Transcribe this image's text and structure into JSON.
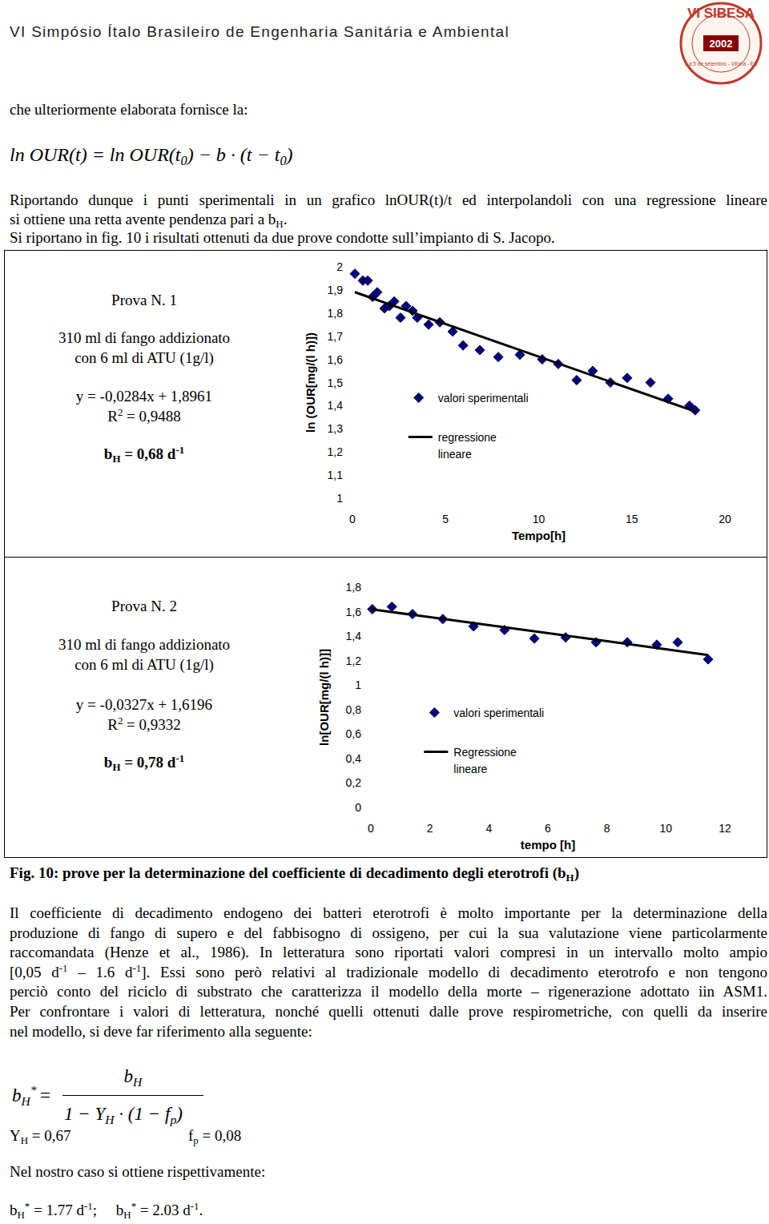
{
  "header": {
    "title": "VI Simpósio Ítalo Brasileiro de Engenharia Sanitária e Ambiental",
    "logo": {
      "name": "VI SIBESA",
      "year": "2002",
      "subtitle": "1 a 5 de setembro - Vitória - ES"
    }
  },
  "intro": [
    "che ulteriormente elaborata fornisce la:"
  ],
  "equation": [
    "ln OUR(t) = ln OUR(t",
    {
      "t": "0",
      "s": "sub"
    },
    ") − b · (t − t",
    {
      "t": "0",
      "s": "sub"
    },
    ")"
  ],
  "paragraphs_top": [
    [
      [
        "Riportando dunque i punti sperimentali in un grafico lnOUR(t)/t ed interpolandoli con una regressione lineare"
      ],
      [
        "si ottiene una retta avente pendenza pari a b",
        {
          "t": "H",
          "s": "sub"
        },
        "."
      ]
    ],
    [
      [
        "Si riportano in fig. 10 i risultati ottenuti da due prove condotte sull’impianto di S. Jacopo."
      ]
    ]
  ],
  "chart_data": [
    {
      "type": "scatter",
      "title": "Prova N. 1",
      "annotations": [
        [
          "310 ml di fango addizionato"
        ],
        [
          "con 6 ml di ATU (1g/l)"
        ],
        [
          "y = -0,0284x + 1,8961"
        ],
        [
          "R",
          {
            "t": "2",
            "s": "sup"
          },
          " = 0,9488"
        ],
        [
          "b",
          {
            "t": "H",
            "s": "sub"
          },
          " = 0,68 d",
          {
            "t": "-1",
            "s": "sup"
          }
        ]
      ],
      "x_label": "Tempo[h]",
      "y_label": "ln (OUR[mg/(l h)])",
      "xlim": [
        0,
        20
      ],
      "xticks": [
        0,
        5,
        10,
        15,
        20
      ],
      "ylim": [
        1,
        2
      ],
      "yticks": [
        1,
        {
          "value": 1.1,
          "label": "1,1"
        },
        {
          "value": 1.2,
          "label": "1,2"
        },
        {
          "value": 1.3,
          "label": "1,3"
        },
        {
          "value": 1.4,
          "label": "1,4"
        },
        {
          "value": 1.5,
          "label": "1,5"
        },
        {
          "value": 1.6,
          "label": "1,6"
        },
        {
          "value": 1.7,
          "label": "1,7"
        },
        {
          "value": 1.8,
          "label": "1,8"
        },
        {
          "value": 1.9,
          "label": "1,9"
        },
        2
      ],
      "grid": false,
      "legend": "center",
      "series": [
        {
          "name": "valori sperimentali",
          "type": "scatter",
          "marker": "diamond",
          "color": "#000080",
          "x": [
            0.13,
            0.56,
            0.82,
            1.08,
            1.33,
            1.72,
            1.98,
            2.24,
            2.58,
            2.88,
            3.23,
            3.48,
            4.09,
            4.69,
            5.38,
            5.94,
            6.84,
            7.83,
            8.99,
            10.19,
            11.05,
            12.04,
            12.9,
            13.85,
            14.75,
            16.0,
            16.95,
            18.1,
            18.4
          ],
          "values": [
            1.97,
            1.94,
            1.94,
            1.87,
            1.89,
            1.82,
            1.83,
            1.85,
            1.78,
            1.83,
            1.81,
            1.78,
            1.75,
            1.76,
            1.72,
            1.66,
            1.64,
            1.61,
            1.62,
            1.6,
            1.58,
            1.51,
            1.55,
            1.5,
            1.52,
            1.5,
            1.43,
            1.4,
            1.38
          ]
        },
        {
          "name": "regressione lineare",
          "type": "line",
          "line_style": "solid",
          "color": "#000000",
          "x": [
            0.13,
            18.4
          ],
          "values": [
            1.89,
            1.375
          ]
        }
      ]
    },
    {
      "type": "scatter",
      "title": "Prova N. 2",
      "annotations": [
        [
          "310 ml di fango addizionato"
        ],
        [
          "con 6 ml di ATU (1g/l)"
        ],
        [
          "y = -0,0327x + 1,6196"
        ],
        [
          "R",
          {
            "t": "2",
            "s": "sup"
          },
          " = 0,9332"
        ],
        [
          "b",
          {
            "t": "H",
            "s": "sub"
          },
          " = 0,78 d",
          {
            "t": "-1",
            "s": "sup"
          }
        ]
      ],
      "x_label": "tempo [h]",
      "y_label": "ln[OUR[mg/(l h)]]",
      "xlim": [
        0,
        12
      ],
      "xticks": [
        0,
        2,
        4,
        6,
        8,
        10,
        12
      ],
      "ylim": [
        0,
        1.8
      ],
      "yticks": [
        0,
        {
          "value": 0.2,
          "label": "0,2"
        },
        {
          "value": 0.4,
          "label": "0,4"
        },
        {
          "value": 0.6,
          "label": "0,6"
        },
        {
          "value": 0.8,
          "label": "0,8"
        },
        1,
        {
          "value": 1.2,
          "label": "1,2"
        },
        {
          "value": 1.4,
          "label": "1,4"
        },
        {
          "value": 1.6,
          "label": "1,6"
        },
        {
          "value": 1.8,
          "label": "1,8"
        }
      ],
      "grid": false,
      "legend": "center",
      "series": [
        {
          "name": "valori sperimentali",
          "type": "scatter",
          "marker": "diamond",
          "color": "#000080",
          "x": [
            0.05,
            0.71,
            1.41,
            2.44,
            3.48,
            4.53,
            5.54,
            6.6,
            7.63,
            8.69,
            9.69,
            10.4,
            11.43
          ],
          "values": [
            1.62,
            1.64,
            1.58,
            1.54,
            1.48,
            1.45,
            1.38,
            1.39,
            1.35,
            1.35,
            1.33,
            1.35,
            1.21
          ]
        },
        {
          "name": "Regressione lineare",
          "type": "line",
          "line_style": "solid",
          "color": "#000000",
          "x": [
            0,
            11.43
          ],
          "values": [
            1.62,
            1.246
          ]
        }
      ]
    }
  ],
  "caption": [
    "Fig. 10: prove per la determinazione del coefficiente di decadimento degli eterotrofi (b",
    {
      "t": "H",
      "s": "sub"
    },
    ")"
  ],
  "paragraphs_bottom": [
    [
      [
        "Il coefficiente di decadimento endogeno dei batteri eterotrofi è molto importante per la determinazione della"
      ],
      [
        "produzione di fango di supero e del fabbisogno di ossigeno, per cui la sua valutazione viene particolarmente"
      ],
      [
        "raccomandata (Henze et al., 1986). In letteratura sono riportati valori compresi in un intervallo molto ampio"
      ],
      [
        "[0,05 d",
        {
          "t": "-1",
          "s": "sup"
        },
        " – 1.6 d",
        {
          "t": "-1",
          "s": "sup"
        },
        "]. Essi sono però relativi al tradizionale modello di decadimento eterotrofo e non tengono"
      ],
      [
        "perciò conto del riciclo di substrato che caratterizza il modello della morte – rigenerazione adottato iin ASM1."
      ],
      [
        "Per confrontare i valori di letteratura, nonché quelli ottenuti dalle prove respirometriche, con quelli da inserire"
      ],
      [
        "nel modello, si deve far riferimento alla seguente:"
      ]
    ]
  ],
  "formula": {
    "lhs": [
      "b",
      {
        "t": "H",
        "s": "sub"
      },
      {
        "t": "*",
        "s": "sup"
      }
    ],
    "eq": "=",
    "num": [
      "b",
      {
        "t": "H",
        "s": "sub"
      }
    ],
    "den": [
      "1 − Y",
      {
        "t": "H",
        "s": "sub"
      },
      " · (1 − f",
      {
        "t": "p",
        "s": "sub"
      },
      ")"
    ]
  },
  "constants": [
    [
      "Y",
      {
        "t": "H",
        "s": "sub"
      },
      " = 0,67"
    ],
    [
      "f",
      {
        "t": "p",
        "s": "sub"
      },
      " = 0,08"
    ]
  ],
  "result_intro": [
    "Nel nostro caso si ottiene rispettivamente:"
  ],
  "results": [
    "b",
    {
      "t": "H",
      "s": "sub"
    },
    {
      "t": "*",
      "s": "sup"
    },
    " = 1.77 d",
    {
      "t": "-1",
      "s": "sup"
    },
    ";     b",
    {
      "t": "H",
      "s": "sub"
    },
    {
      "t": "*",
      "s": "sup"
    },
    " = 2.03 d",
    {
      "t": "-1",
      "s": "sup"
    },
    "."
  ]
}
